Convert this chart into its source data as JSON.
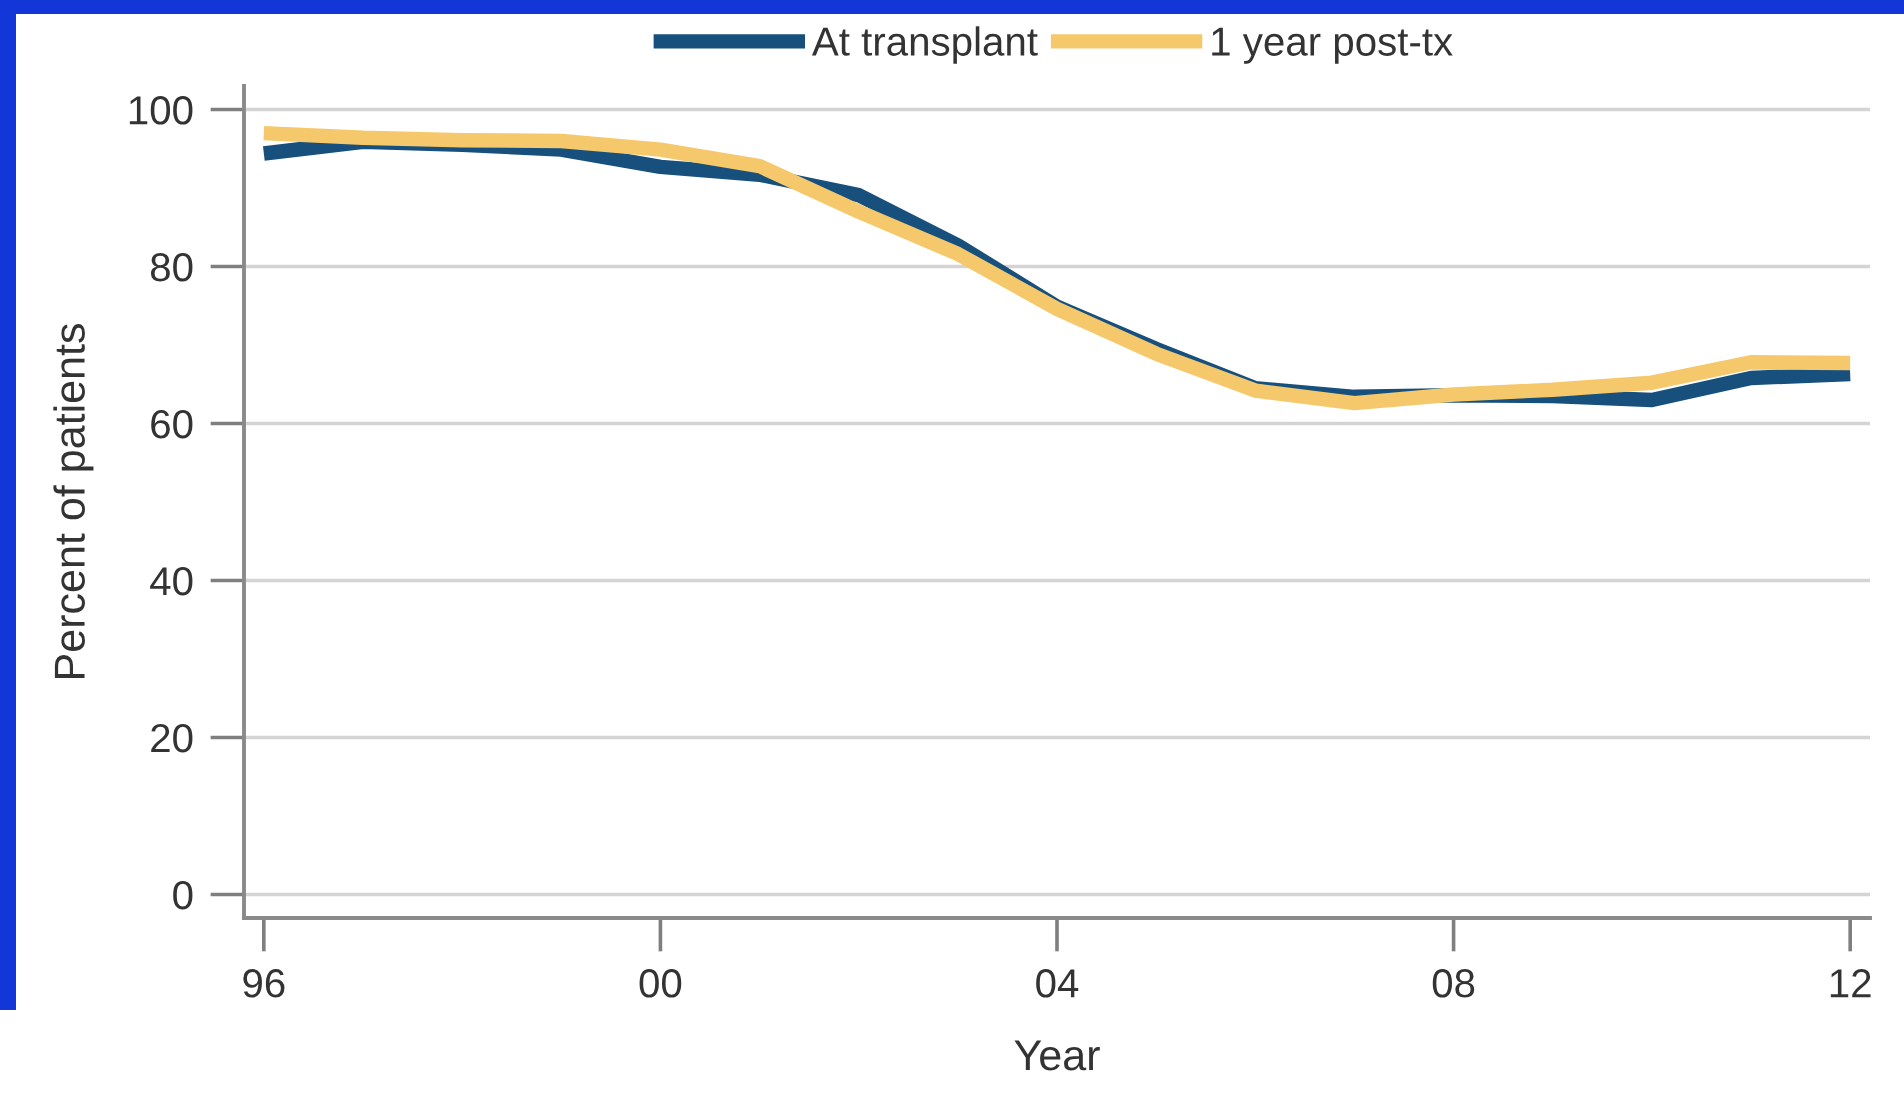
{
  "chart_data": {
    "type": "line",
    "xlabel": "Year",
    "ylabel": "Percent of patients",
    "x": [
      1996,
      1997,
      1998,
      1999,
      2000,
      2001,
      2002,
      2003,
      2004,
      2005,
      2006,
      2007,
      2008,
      2009,
      2010,
      2011,
      2012
    ],
    "series": [
      {
        "name": "At transplant",
        "color": "#17507c",
        "values": [
          94.4,
          95.9,
          95.5,
          94.9,
          92.7,
          91.7,
          89.1,
          82.7,
          74.9,
          69.5,
          64.5,
          63.4,
          63.6,
          63.5,
          63.0,
          65.8,
          66.3
        ]
      },
      {
        "name": "1 year post-tx",
        "color": "#f6c86c",
        "values": [
          97.0,
          96.4,
          96.1,
          96.0,
          94.9,
          92.8,
          87.0,
          81.6,
          74.6,
          68.9,
          64.2,
          62.6,
          63.7,
          64.3,
          65.2,
          67.8,
          67.7
        ]
      }
    ],
    "xlim": [
      1995.8,
      2012.2
    ],
    "xticks": [
      {
        "value": 1996,
        "label": "96"
      },
      {
        "value": 2000,
        "label": "00"
      },
      {
        "value": 2004,
        "label": "04"
      },
      {
        "value": 2008,
        "label": "08"
      },
      {
        "value": 2012,
        "label": "12"
      }
    ],
    "ylim": [
      -3,
      103
    ],
    "yticks": [
      0,
      20,
      40,
      60,
      80,
      100
    ],
    "grid": "y",
    "legend": "top",
    "marker": "none",
    "line_style": "solid"
  }
}
